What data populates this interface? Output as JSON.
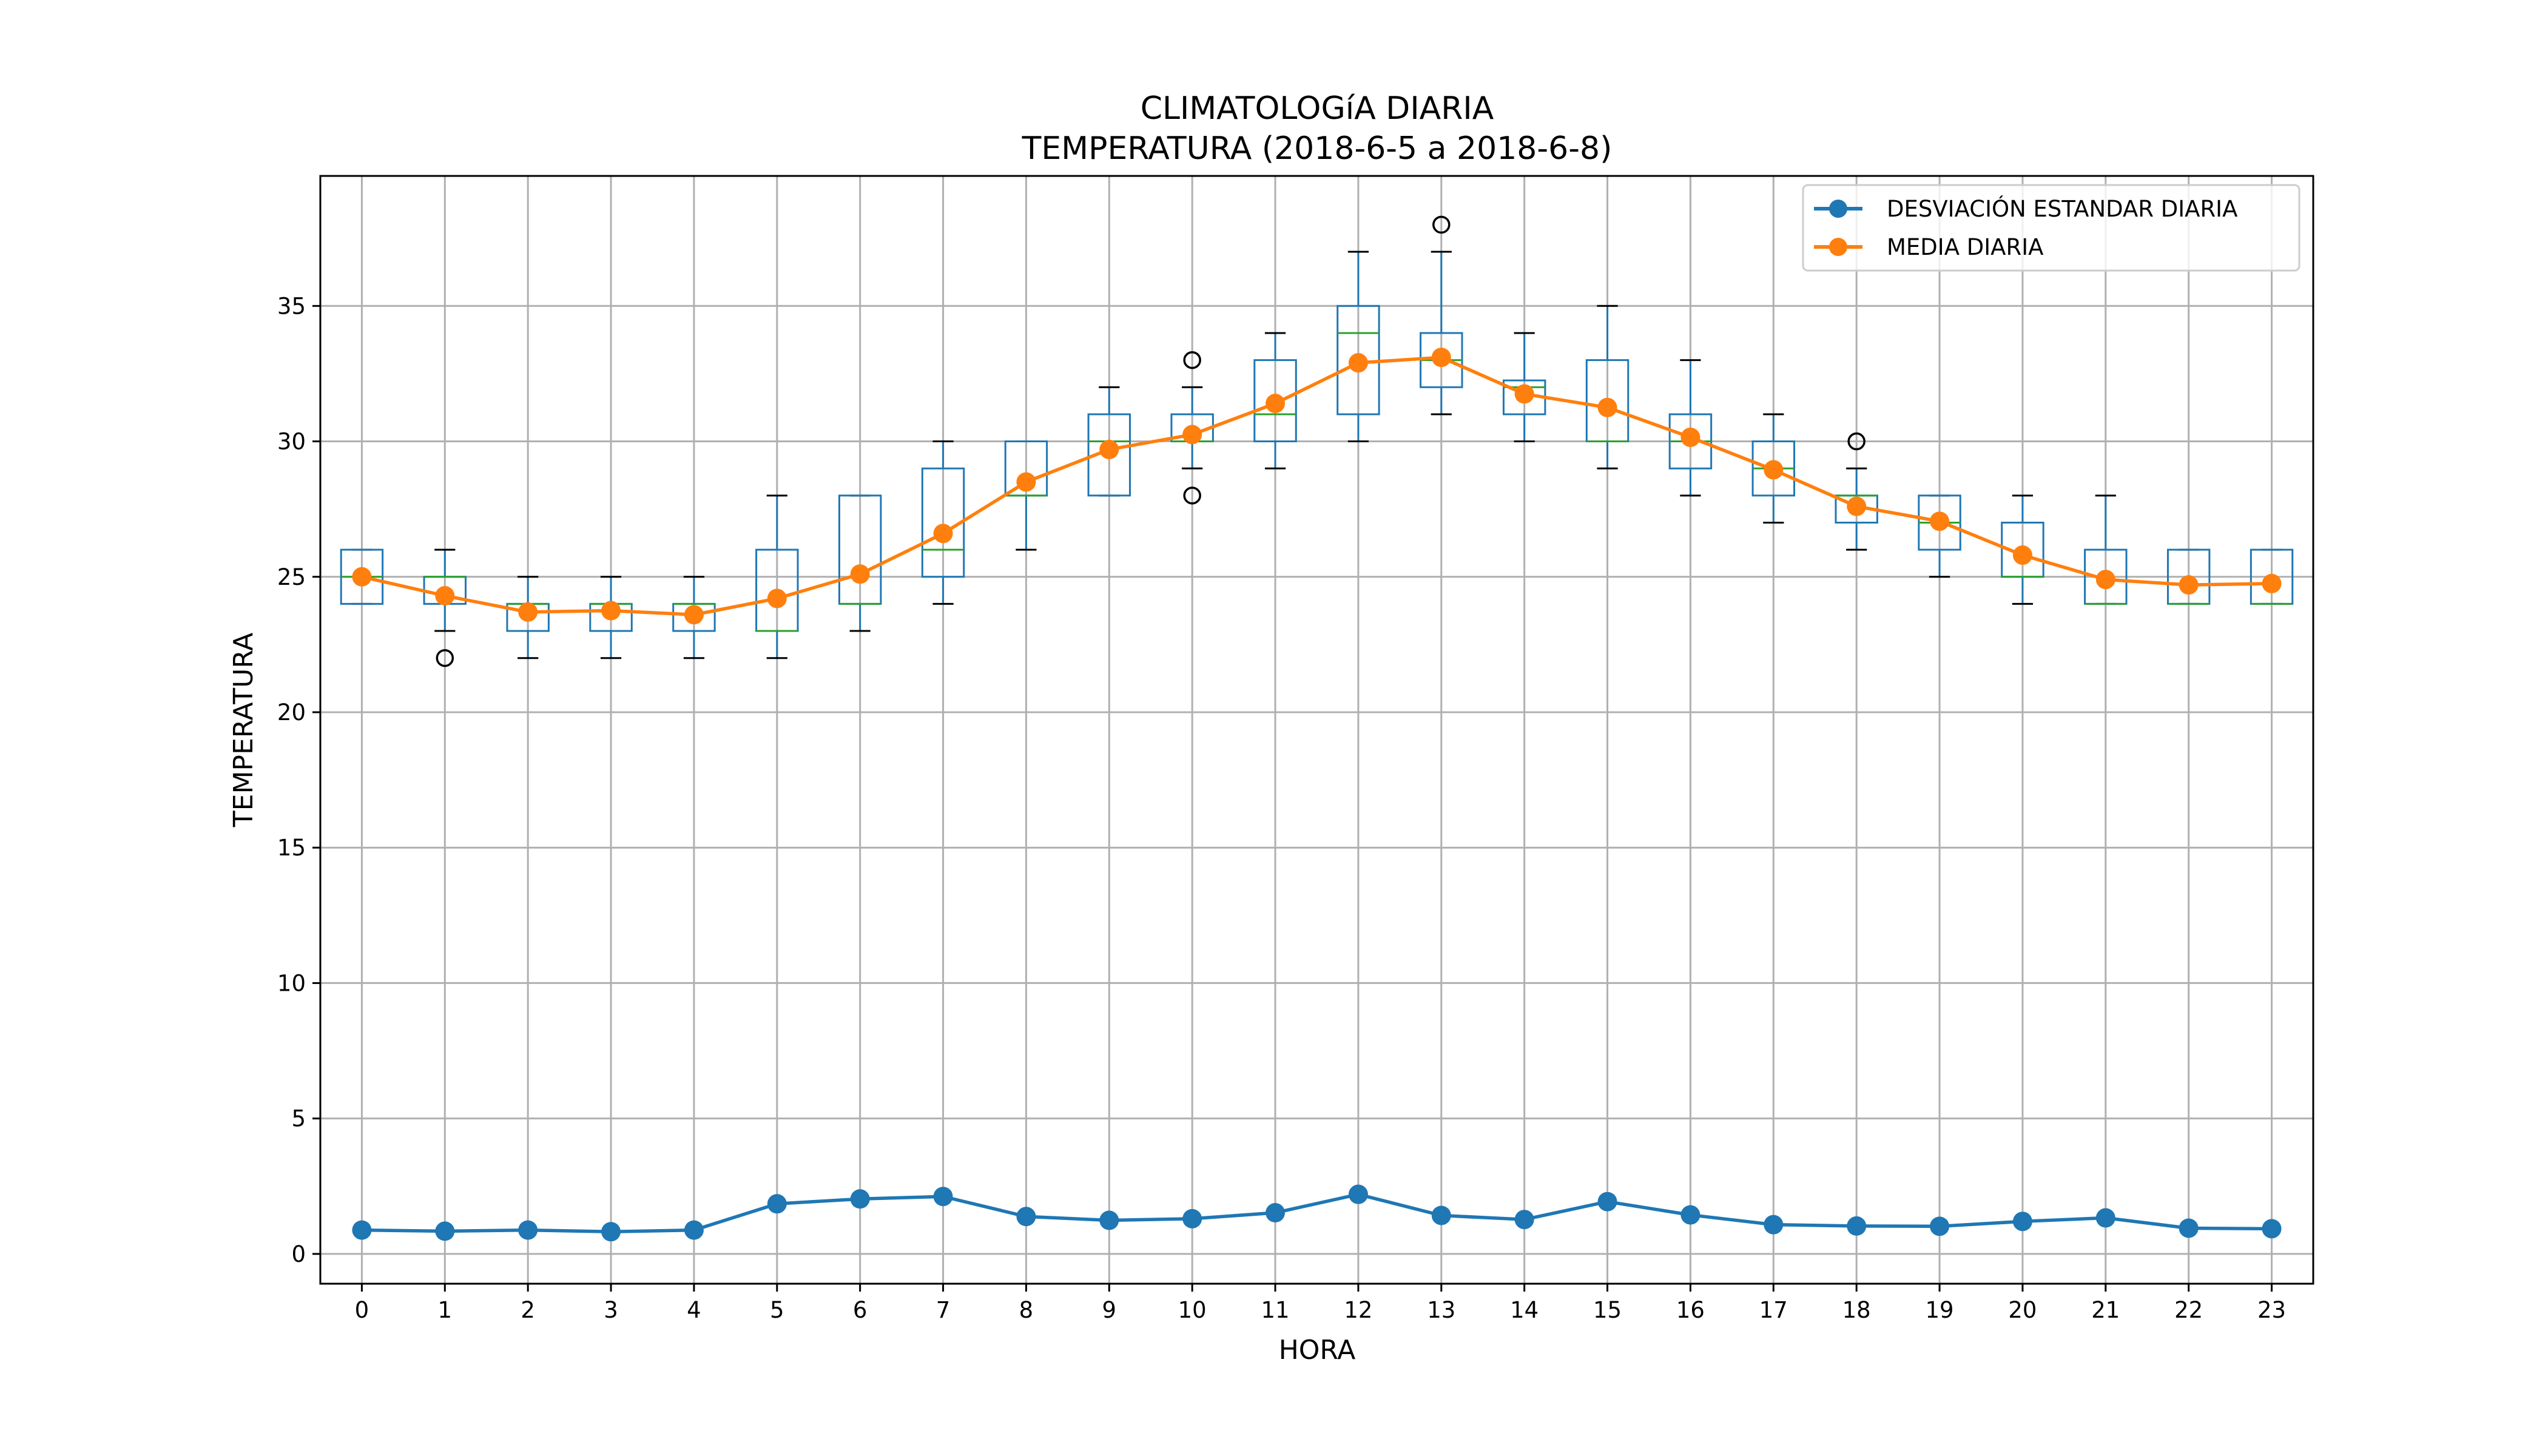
{
  "figure": {
    "title_line1": "CLIMATOLOGíA DIARIA",
    "title_line2": "TEMPERATURA (2018-6-5 a 2018-6-8)"
  },
  "colors": {
    "std_series": "#1f77b4",
    "mean_series": "#ff7f0e",
    "box_outline": "#1f77b4",
    "box_median": "#2ca02c",
    "whisker": "#000000",
    "grid": "#b0b0b0"
  },
  "chart_data": {
    "type": "box+line",
    "xlabel": "HORA",
    "ylabel": "TEMPERATURA",
    "xlim": [
      -0.5,
      23.5
    ],
    "ylim": [
      -1.1,
      39.8
    ],
    "yticks": [
      0,
      5,
      10,
      15,
      20,
      25,
      30,
      35
    ],
    "grid": true,
    "legend_position": "top-right",
    "categories": [
      "0",
      "1",
      "2",
      "3",
      "4",
      "5",
      "6",
      "7",
      "8",
      "9",
      "10",
      "11",
      "12",
      "13",
      "14",
      "15",
      "16",
      "17",
      "18",
      "19",
      "20",
      "21",
      "22",
      "23"
    ],
    "boxes": [
      {
        "whislo": 24,
        "q1": 24,
        "med": 25,
        "q3": 26,
        "whishi": 26,
        "fliers": []
      },
      {
        "whislo": 23,
        "q1": 24,
        "med": 25,
        "q3": 25,
        "whishi": 26,
        "fliers": [
          22
        ]
      },
      {
        "whislo": 22,
        "q1": 23,
        "med": 24,
        "q3": 24,
        "whishi": 25,
        "fliers": []
      },
      {
        "whislo": 22,
        "q1": 23,
        "med": 24,
        "q3": 24,
        "whishi": 25,
        "fliers": []
      },
      {
        "whislo": 22,
        "q1": 23,
        "med": 24,
        "q3": 24,
        "whishi": 25,
        "fliers": []
      },
      {
        "whislo": 22,
        "q1": 23,
        "med": 23,
        "q3": 26,
        "whishi": 28,
        "fliers": []
      },
      {
        "whislo": 23,
        "q1": 24,
        "med": 24,
        "q3": 28,
        "whishi": 28,
        "fliers": []
      },
      {
        "whislo": 24,
        "q1": 25,
        "med": 26,
        "q3": 29,
        "whishi": 30,
        "fliers": []
      },
      {
        "whislo": 26,
        "q1": 28,
        "med": 28,
        "q3": 30,
        "whishi": 30,
        "fliers": []
      },
      {
        "whislo": 28,
        "q1": 28,
        "med": 30,
        "q3": 31,
        "whishi": 32,
        "fliers": []
      },
      {
        "whislo": 29,
        "q1": 30,
        "med": 30,
        "q3": 31,
        "whishi": 32,
        "fliers": [
          33,
          28
        ]
      },
      {
        "whislo": 29,
        "q1": 30,
        "med": 31,
        "q3": 33,
        "whishi": 34,
        "fliers": []
      },
      {
        "whislo": 30,
        "q1": 31,
        "med": 34,
        "q3": 35,
        "whishi": 37,
        "fliers": []
      },
      {
        "whislo": 31,
        "q1": 32,
        "med": 33,
        "q3": 34,
        "whishi": 37,
        "fliers": [
          38
        ]
      },
      {
        "whislo": 30,
        "q1": 31,
        "med": 32,
        "q3": 32.25,
        "whishi": 34,
        "fliers": []
      },
      {
        "whislo": 29,
        "q1": 30,
        "med": 30,
        "q3": 33,
        "whishi": 35,
        "fliers": []
      },
      {
        "whislo": 28,
        "q1": 29,
        "med": 30,
        "q3": 31,
        "whishi": 33,
        "fliers": []
      },
      {
        "whislo": 27,
        "q1": 28,
        "med": 29,
        "q3": 30,
        "whishi": 31,
        "fliers": []
      },
      {
        "whislo": 26,
        "q1": 27,
        "med": 28,
        "q3": 28,
        "whishi": 29,
        "fliers": [
          30
        ]
      },
      {
        "whislo": 25,
        "q1": 26,
        "med": 27,
        "q3": 28,
        "whishi": 28,
        "fliers": []
      },
      {
        "whislo": 24,
        "q1": 25,
        "med": 25,
        "q3": 27,
        "whishi": 28,
        "fliers": []
      },
      {
        "whislo": 24,
        "q1": 24,
        "med": 24,
        "q3": 26,
        "whishi": 28,
        "fliers": []
      },
      {
        "whislo": 24,
        "q1": 24,
        "med": 24,
        "q3": 26,
        "whishi": 26,
        "fliers": []
      },
      {
        "whislo": 24,
        "q1": 24,
        "med": 24,
        "q3": 26,
        "whishi": 26,
        "fliers": []
      }
    ],
    "series": [
      {
        "name": "DESVIACIÓN ESTANDAR DIARIA",
        "values": [
          0.88,
          0.84,
          0.88,
          0.82,
          0.88,
          1.85,
          2.03,
          2.12,
          1.38,
          1.24,
          1.3,
          1.52,
          2.2,
          1.42,
          1.27,
          1.93,
          1.44,
          1.08,
          1.03,
          1.02,
          1.2,
          1.33,
          0.95,
          0.93
        ]
      },
      {
        "name": "MEDIA DIARIA",
        "values": [
          25.0,
          24.3,
          23.7,
          23.75,
          23.6,
          24.2,
          25.1,
          26.6,
          28.5,
          29.7,
          30.25,
          31.4,
          32.9,
          33.1,
          31.75,
          31.25,
          30.15,
          28.95,
          27.6,
          27.05,
          25.8,
          24.9,
          24.7,
          24.75
        ]
      }
    ]
  }
}
